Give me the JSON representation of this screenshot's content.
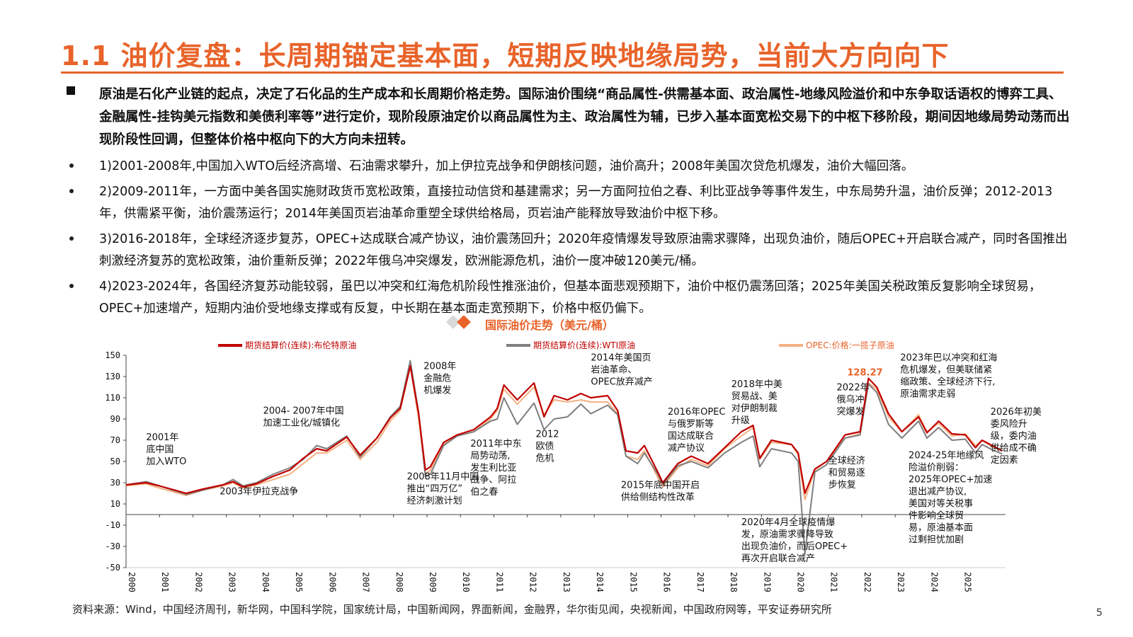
{
  "page": {
    "title": "1.1 油价复盘：长周期锚定基本面，短期反映地缘局势，当前大方向向下",
    "intro": "原油是石化产业链的起点，决定了石化品的生产成本和长周期价格走势。国际油价围绕“商品属性-供需基本面、政治属性-地缘风险溢价和中东争取话语权的博弈工具、金融属性-挂钩美元指数和美债利率等”进行定价，现阶段原油定价以商品属性为主、政治属性为辅，已步入基本面宽松交易下的中枢下移阶段，期间因地缘局势动荡而出现阶段性回调，但整体价格中枢向下的大方向未扭转。",
    "points": [
      "1)2001-2008年,中国加入WTO后经济高增、石油需求攀升，加上伊拉克战争和伊朗核问题，油价高升；2008年美国次贷危机爆发，油价大幅回落。",
      "2)2009-2011年，一方面中美各国实施财政货币宽松政策，直接拉动信贷和基建需求；另一方面阿拉伯之春、利比亚战争等事件发生，中东局势升温，油价反弹；2012-2013年，供需紧平衡，油价震荡运行；2014年美国页岩油革命重塑全球供给格局，页岩油产能释放导致油价中枢下移。",
      "3)2016-2018年，全球经济逐步复苏，OPEC+达成联合减产协议，油价震荡回升；2020年疫情爆发导致原油需求骤降，出现负油价，随后OPEC+开启联合减产，同时各国推出刺激经济复苏的宽松政策，油价重新反弹；2022年俄乌冲突爆发，欧洲能源危机，油价一度冲破120美元/桶。",
      "4)2023-2024年，各国经济复苏动能较弱，虽巴以冲突和红海危机阶段性推涨油价，但基本面悲观预期下，油价中枢仍震荡回落；2025年美国关税政策反复影响全球贸易，OPEC+加速增产，短期内油价受地缘支撑或有反复，中长期在基本面走宽预期下，价格中枢仍偏下。"
    ],
    "source": "资料来源：Wind，中国经济周刊，新华网，中国科学院，国家统计局，中国新闻网，界面新闻，金融界，华尔街见闻，央视新闻，中国政府网等，平安证券研究所",
    "page_number": "5"
  },
  "colors": {
    "accent": "#e8632a",
    "brent": "#c00000",
    "wti": "#7f7f7f",
    "opec": "#f4b183"
  },
  "chart_data": {
    "type": "line",
    "title": "国际油价走势（美元/桶）",
    "x_ticks": [
      "2000",
      "2001",
      "2002",
      "2003",
      "2004",
      "2005",
      "2006",
      "2007",
      "2008",
      "2009",
      "2010",
      "2011",
      "2012",
      "2013",
      "2014",
      "2015",
      "2016",
      "2017",
      "2018",
      "2019",
      "2020",
      "2021",
      "2022",
      "2023",
      "2024",
      "2025"
    ],
    "y_ticks": [
      "150",
      "130",
      "110",
      "90",
      "70",
      "50",
      "30",
      "10",
      "-10",
      "-30",
      "-50"
    ],
    "ylim": [
      -50,
      150
    ],
    "xlim": [
      2000,
      2026.3
    ],
    "legend_position": "top",
    "peak_label": "128.27",
    "series": [
      {
        "name": "期货结算价(连续):布伦特原油",
        "points": [
          [
            2000,
            28
          ],
          [
            2000.6,
            30
          ],
          [
            2001,
            27
          ],
          [
            2001.8,
            20
          ],
          [
            2002.3,
            24
          ],
          [
            2002.9,
            28
          ],
          [
            2003.2,
            31
          ],
          [
            2003.5,
            26
          ],
          [
            2003.9,
            29
          ],
          [
            2004.4,
            36
          ],
          [
            2004.9,
            42
          ],
          [
            2005.3,
            53
          ],
          [
            2005.7,
            62
          ],
          [
            2006,
            60
          ],
          [
            2006.6,
            73
          ],
          [
            2007,
            56
          ],
          [
            2007.5,
            72
          ],
          [
            2007.9,
            91
          ],
          [
            2008.2,
            100
          ],
          [
            2008.5,
            140
          ],
          [
            2008.75,
            95
          ],
          [
            2008.95,
            42
          ],
          [
            2009.1,
            45
          ],
          [
            2009.5,
            68
          ],
          [
            2009.9,
            75
          ],
          [
            2010.4,
            80
          ],
          [
            2010.9,
            92
          ],
          [
            2011.1,
            100
          ],
          [
            2011.3,
            122
          ],
          [
            2011.7,
            108
          ],
          [
            2012.2,
            124
          ],
          [
            2012.5,
            92
          ],
          [
            2012.8,
            112
          ],
          [
            2013.2,
            108
          ],
          [
            2013.6,
            114
          ],
          [
            2013.9,
            110
          ],
          [
            2014.4,
            112
          ],
          [
            2014.7,
            98
          ],
          [
            2014.95,
            60
          ],
          [
            2015.3,
            58
          ],
          [
            2015.5,
            65
          ],
          [
            2015.9,
            40
          ],
          [
            2016.05,
            30
          ],
          [
            2016.5,
            48
          ],
          [
            2016.9,
            55
          ],
          [
            2017.4,
            48
          ],
          [
            2017.9,
            63
          ],
          [
            2018.4,
            78
          ],
          [
            2018.75,
            84
          ],
          [
            2018.95,
            53
          ],
          [
            2019.3,
            70
          ],
          [
            2019.9,
            66
          ],
          [
            2020.1,
            58
          ],
          [
            2020.3,
            20
          ],
          [
            2020.6,
            43
          ],
          [
            2020.95,
            50
          ],
          [
            2021.5,
            75
          ],
          [
            2021.95,
            78
          ],
          [
            2022.2,
            128.27
          ],
          [
            2022.45,
            120
          ],
          [
            2022.8,
            95
          ],
          [
            2023.2,
            78
          ],
          [
            2023.7,
            92
          ],
          [
            2023.95,
            77
          ],
          [
            2024.3,
            88
          ],
          [
            2024.7,
            76
          ],
          [
            2025.1,
            75
          ],
          [
            2025.4,
            63
          ],
          [
            2025.6,
            70
          ],
          [
            2025.9,
            65
          ],
          [
            2026.2,
            60
          ]
        ]
      },
      {
        "name": "期货结算价(连续):WTI原油",
        "points": [
          [
            2000,
            28
          ],
          [
            2000.6,
            31
          ],
          [
            2001,
            27
          ],
          [
            2001.8,
            19
          ],
          [
            2002.3,
            23
          ],
          [
            2002.9,
            28
          ],
          [
            2003.2,
            33
          ],
          [
            2003.5,
            27
          ],
          [
            2003.9,
            30
          ],
          [
            2004.4,
            38
          ],
          [
            2004.9,
            44
          ],
          [
            2005.3,
            52
          ],
          [
            2005.7,
            65
          ],
          [
            2006,
            62
          ],
          [
            2006.6,
            74
          ],
          [
            2007,
            54
          ],
          [
            2007.5,
            72
          ],
          [
            2007.9,
            92
          ],
          [
            2008.2,
            102
          ],
          [
            2008.5,
            145
          ],
          [
            2008.75,
            96
          ],
          [
            2008.95,
            36
          ],
          [
            2009.1,
            38
          ],
          [
            2009.5,
            65
          ],
          [
            2009.9,
            74
          ],
          [
            2010.4,
            78
          ],
          [
            2010.9,
            88
          ],
          [
            2011.1,
            90
          ],
          [
            2011.3,
            110
          ],
          [
            2011.7,
            85
          ],
          [
            2012.2,
            105
          ],
          [
            2012.5,
            80
          ],
          [
            2012.8,
            90
          ],
          [
            2013.2,
            92
          ],
          [
            2013.6,
            104
          ],
          [
            2013.9,
            95
          ],
          [
            2014.4,
            103
          ],
          [
            2014.7,
            94
          ],
          [
            2014.95,
            55
          ],
          [
            2015.3,
            48
          ],
          [
            2015.5,
            58
          ],
          [
            2015.9,
            38
          ],
          [
            2016.05,
            28
          ],
          [
            2016.5,
            46
          ],
          [
            2016.9,
            50
          ],
          [
            2017.4,
            44
          ],
          [
            2017.9,
            58
          ],
          [
            2018.4,
            68
          ],
          [
            2018.75,
            74
          ],
          [
            2018.95,
            45
          ],
          [
            2019.3,
            62
          ],
          [
            2019.9,
            58
          ],
          [
            2020.1,
            50
          ],
          [
            2020.3,
            -37
          ],
          [
            2020.6,
            40
          ],
          [
            2020.95,
            47
          ],
          [
            2021.5,
            72
          ],
          [
            2021.95,
            75
          ],
          [
            2022.2,
            123
          ],
          [
            2022.45,
            115
          ],
          [
            2022.8,
            85
          ],
          [
            2023.2,
            72
          ],
          [
            2023.7,
            88
          ],
          [
            2023.95,
            72
          ],
          [
            2024.3,
            82
          ],
          [
            2024.7,
            70
          ],
          [
            2025.1,
            71
          ],
          [
            2025.4,
            58
          ],
          [
            2025.6,
            66
          ],
          [
            2025.9,
            61
          ],
          [
            2026.2,
            57
          ]
        ]
      },
      {
        "name": "OPEC:价格:一揽子原油",
        "points": [
          [
            2000,
            27
          ],
          [
            2000.6,
            29
          ],
          [
            2001,
            25
          ],
          [
            2001.8,
            18
          ],
          [
            2002.3,
            23
          ],
          [
            2002.9,
            27
          ],
          [
            2003.2,
            30
          ],
          [
            2003.5,
            25
          ],
          [
            2003.9,
            28
          ],
          [
            2004.4,
            33
          ],
          [
            2004.9,
            38
          ],
          [
            2005.3,
            48
          ],
          [
            2005.7,
            58
          ],
          [
            2006,
            58
          ],
          [
            2006.6,
            70
          ],
          [
            2007,
            52
          ],
          [
            2007.5,
            68
          ],
          [
            2007.9,
            88
          ],
          [
            2008.2,
            98
          ],
          [
            2008.5,
            140
          ],
          [
            2008.75,
            90
          ],
          [
            2008.95,
            38
          ],
          [
            2009.1,
            42
          ],
          [
            2009.5,
            66
          ],
          [
            2009.9,
            74
          ],
          [
            2010.4,
            78
          ],
          [
            2010.9,
            90
          ],
          [
            2011.1,
            98
          ],
          [
            2011.3,
            118
          ],
          [
            2011.7,
            104
          ],
          [
            2012.2,
            120
          ],
          [
            2012.5,
            94
          ],
          [
            2012.8,
            108
          ],
          [
            2013.2,
            106
          ],
          [
            2013.6,
            108
          ],
          [
            2013.9,
            106
          ],
          [
            2014.4,
            106
          ],
          [
            2014.7,
            95
          ],
          [
            2014.95,
            55
          ],
          [
            2015.3,
            52
          ],
          [
            2015.5,
            60
          ],
          [
            2015.9,
            35
          ],
          [
            2016.05,
            26
          ],
          [
            2016.5,
            44
          ],
          [
            2016.9,
            52
          ],
          [
            2017.4,
            46
          ],
          [
            2017.9,
            62
          ],
          [
            2018.4,
            74
          ],
          [
            2018.75,
            82
          ],
          [
            2018.95,
            52
          ],
          [
            2019.3,
            68
          ],
          [
            2019.9,
            66
          ],
          [
            2020.1,
            56
          ],
          [
            2020.3,
            14
          ],
          [
            2020.6,
            42
          ],
          [
            2020.95,
            50
          ],
          [
            2021.5,
            72
          ],
          [
            2021.95,
            76
          ],
          [
            2022.2,
            124
          ],
          [
            2022.45,
            118
          ],
          [
            2022.8,
            92
          ],
          [
            2023.2,
            78
          ],
          [
            2023.7,
            94
          ],
          [
            2023.95,
            78
          ],
          [
            2024.3,
            86
          ],
          [
            2024.7,
            74
          ],
          [
            2025.1,
            76
          ],
          [
            2025.4,
            65
          ],
          [
            2025.6,
            70
          ],
          [
            2025.9,
            64
          ],
          [
            2026.2,
            60
          ]
        ]
      }
    ],
    "annotations": [
      {
        "lines": [
          "2001年",
          "底中国",
          "加入WTO"
        ],
        "x": 2000.6,
        "y": 70
      },
      {
        "lines": [
          "2003年伊拉克战争"
        ],
        "x": 2002.8,
        "y": 19
      },
      {
        "lines": [
          "2004- 2007年中国",
          "加速工业化/城镇化"
        ],
        "x": 2004.1,
        "y": 95
      },
      {
        "lines": [
          "2008年",
          "金融危",
          "机爆发"
        ],
        "x": 2008.9,
        "y": 137
      },
      {
        "lines": [
          "2008年11月中国",
          "推出“四万亿”",
          "经济刺激计划"
        ],
        "x": 2008.4,
        "y": 33
      },
      {
        "lines": [
          "2011年中东",
          "局势动荡,",
          "发生利比亚",
          "战争、阿拉",
          "伯之春"
        ],
        "x": 2010.3,
        "y": 64
      },
      {
        "lines": [
          "2012",
          "欧债",
          "危机"
        ],
        "x": 2012.25,
        "y": 73
      },
      {
        "lines": [
          "2014年美国页",
          "岩油革命、",
          "OPEC放弃减产"
        ],
        "x": 2013.9,
        "y": 145
      },
      {
        "lines": [
          "2015年底中国开启",
          "供给侧结构性改革"
        ],
        "x": 2014.8,
        "y": 25
      },
      {
        "lines": [
          "2016年OPEC",
          "与俄罗斯等",
          "国达成联合",
          "减产协议"
        ],
        "x": 2016.2,
        "y": 94
      },
      {
        "lines": [
          "2018年中美",
          "贸易战、美",
          "对伊朗制裁",
          "升级"
        ],
        "x": 2018.1,
        "y": 120
      },
      {
        "lines": [
          "2020年4月全球疫情爆",
          "发，原油需求骤降导致",
          "出现负油价，而后OPEC+",
          "再次开启联合减产"
        ],
        "x": 2018.4,
        "y": -10
      },
      {
        "lines": [
          "2022年",
          "俄乌冲",
          "突爆发"
        ],
        "x": 2021.25,
        "y": 117
      },
      {
        "lines": [
          "全球经济",
          "和贸易逐",
          "步恢复"
        ],
        "x": 2021.0,
        "y": 48
      },
      {
        "lines": [
          "2023年巴以冲突和红海",
          "危机爆发，但美联储紧",
          "缩政策、全球经济下行,",
          "原油需求走弱"
        ],
        "x": 2023.15,
        "y": 145
      },
      {
        "lines": [
          "2026年初美",
          "委风险升",
          "级，委内油",
          "供给成不确",
          "定因素"
        ],
        "x": 2025.85,
        "y": 94
      },
      {
        "lines": [
          "2024-25年地缘风",
          "险溢价削弱：",
          "2025年OPEC+加速",
          "退出减产协议,",
          "美国对等关税事",
          "件影响全球贸",
          "易，原油基本面",
          "过剩担忧加剧"
        ],
        "x": 2023.4,
        "y": 53
      }
    ]
  }
}
